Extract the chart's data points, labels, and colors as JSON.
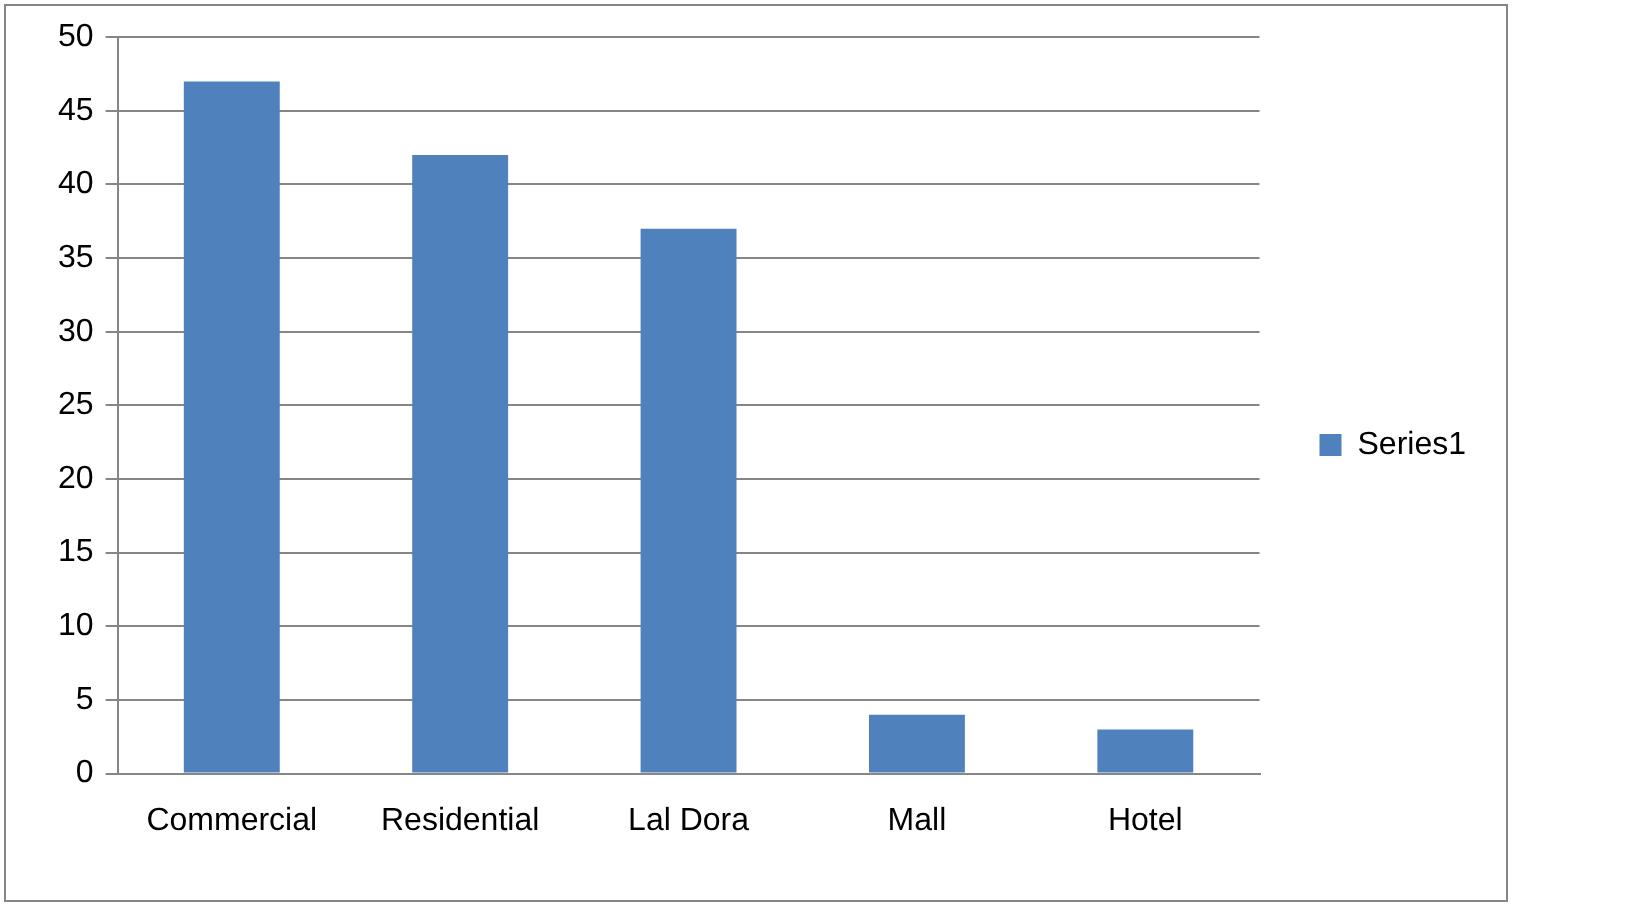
{
  "chart_data": {
    "type": "bar",
    "categories": [
      "Commercial",
      "Residential",
      "Lal Dora",
      "Mall",
      "Hotel"
    ],
    "series": [
      {
        "name": "Series1",
        "color": "#4f81bd",
        "values": [
          47,
          42,
          37,
          4,
          3
        ]
      }
    ],
    "ylim": [
      0,
      50
    ],
    "yticks": [
      0,
      5,
      10,
      15,
      20,
      25,
      30,
      35,
      40,
      45,
      50
    ],
    "grid": "y",
    "legend": "right"
  }
}
